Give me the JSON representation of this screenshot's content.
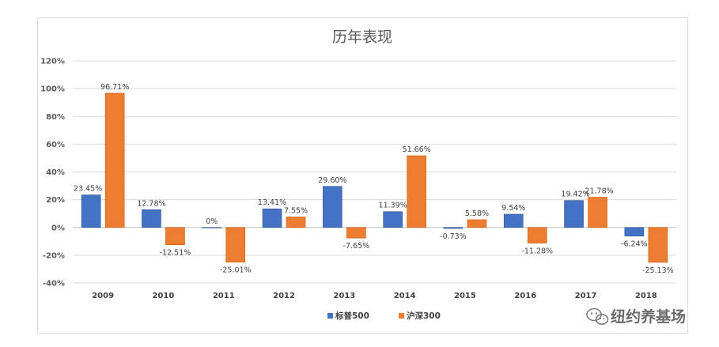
{
  "chart_data": {
    "type": "bar",
    "title": "历年表现",
    "categories": [
      "2009",
      "2010",
      "2011",
      "2012",
      "2013",
      "2014",
      "2015",
      "2016",
      "2017",
      "2018"
    ],
    "series": [
      {
        "name": "标普500",
        "color": "#4472C4",
        "values": [
          23.45,
          12.78,
          0,
          13.41,
          29.6,
          11.39,
          -0.73,
          9.54,
          19.42,
          -6.24
        ],
        "labels": [
          "23.45%",
          "12.78%",
          "0%",
          "13.41%",
          "29.60%",
          "11.39%",
          "-0.73%",
          "9.54%",
          "19.42%",
          "-6.24%"
        ]
      },
      {
        "name": "沪深300",
        "color": "#ED7D31",
        "values": [
          96.71,
          -12.51,
          -25.01,
          7.55,
          -7.65,
          51.66,
          5.58,
          -11.28,
          21.78,
          -25.13
        ],
        "labels": [
          "96.71%",
          "-12.51%",
          "-25.01%",
          "7.55%",
          "-7.65%",
          "51.66%",
          "5.58%",
          "-11.28%",
          "21.78%",
          "-25.13%"
        ]
      }
    ],
    "yticks": [
      "120%",
      "100%",
      "80%",
      "60%",
      "40%",
      "20%",
      "0%",
      "-20%",
      "-40%"
    ],
    "ytick_values": [
      120,
      100,
      80,
      60,
      40,
      20,
      0,
      -20,
      -40
    ],
    "ylim": [
      -40,
      120
    ],
    "grid": true,
    "legend_position": "bottom",
    "xlabel": "",
    "ylabel": ""
  },
  "watermark": {
    "text": "纽约养基场",
    "icon": "wechat-icon"
  }
}
